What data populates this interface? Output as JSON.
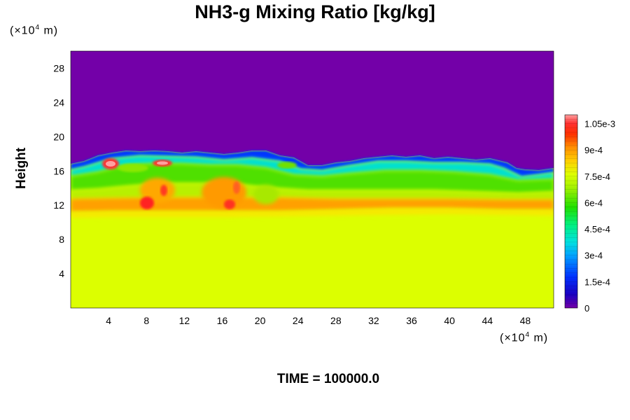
{
  "chart_data": {
    "type": "heatmap",
    "title": "NH3-g Mixing Ratio [kg/kg]",
    "ylabel": "Height",
    "xlabel": "",
    "x_unit": [
      "(×10",
      "4",
      " m)"
    ],
    "y_unit": [
      "(×10",
      "4",
      " m)"
    ],
    "footer": "TIME = 100000.0",
    "xlim": [
      0,
      51
    ],
    "ylim": [
      0,
      30
    ],
    "x_ticks": [
      4,
      8,
      12,
      16,
      20,
      24,
      28,
      32,
      36,
      40,
      44,
      48
    ],
    "y_ticks": [
      4,
      8,
      12,
      16,
      20,
      24,
      28
    ],
    "colorbar": {
      "range": [
        0,
        0.0011
      ],
      "tick_values": [
        0,
        0.00015,
        0.0003,
        0.00045,
        0.0006,
        0.00075,
        0.0009,
        0.00105
      ],
      "tick_labels": [
        "0",
        "1.5e-4",
        "3e-4",
        "4.5e-4",
        "6e-4",
        "7.5e-4",
        "9e-4",
        "1.05e-3"
      ]
    },
    "regions": {
      "upper_value": 0,
      "lower_value": 0.00075,
      "band_bottom": 11,
      "band_top_approx": 16.5
    },
    "colors": {
      "upper": "#7300a8",
      "lower": "#dcff00",
      "orange_band": "#ffa000",
      "green": "#50e000",
      "cyan": "#00e0d0",
      "blue": "#0030ff",
      "red": "#ff1a1a",
      "peak": "#ff9090"
    }
  }
}
